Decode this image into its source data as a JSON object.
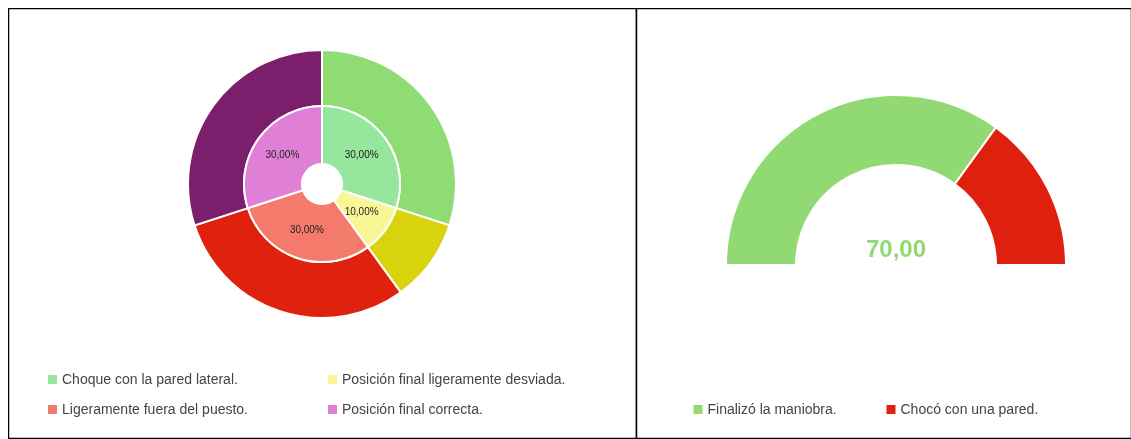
{
  "chart_data": [
    {
      "type": "donut",
      "categories": [
        "Choque con la pared lateral.",
        "Posición final ligeramente desviada.",
        "Ligeramente fuera del puesto.",
        "Posición final correcta."
      ],
      "series": [
        {
          "values": [
            30,
            10,
            30,
            30
          ],
          "colors": [
            "#8fdb74",
            "#d8d30d",
            "#e0210e",
            "#7b1e6c"
          ]
        },
        {
          "values": [
            30,
            10,
            30,
            30
          ],
          "colors": [
            "#96e69e",
            "#f8f696",
            "#f47b6b",
            "#df80d6"
          ],
          "value_labels": [
            "30,00%",
            "10,00%",
            "30,00%",
            "30,00%"
          ]
        }
      ],
      "legend": "bottom"
    },
    {
      "type": "donut",
      "categories": [
        "Finalizó la maniobra.",
        "Chocó con una pared."
      ],
      "values": [
        70,
        30
      ],
      "colors": [
        "#90d973",
        "#e0200e"
      ],
      "annotations": [
        "70,00"
      ],
      "legend": "bottom"
    }
  ]
}
